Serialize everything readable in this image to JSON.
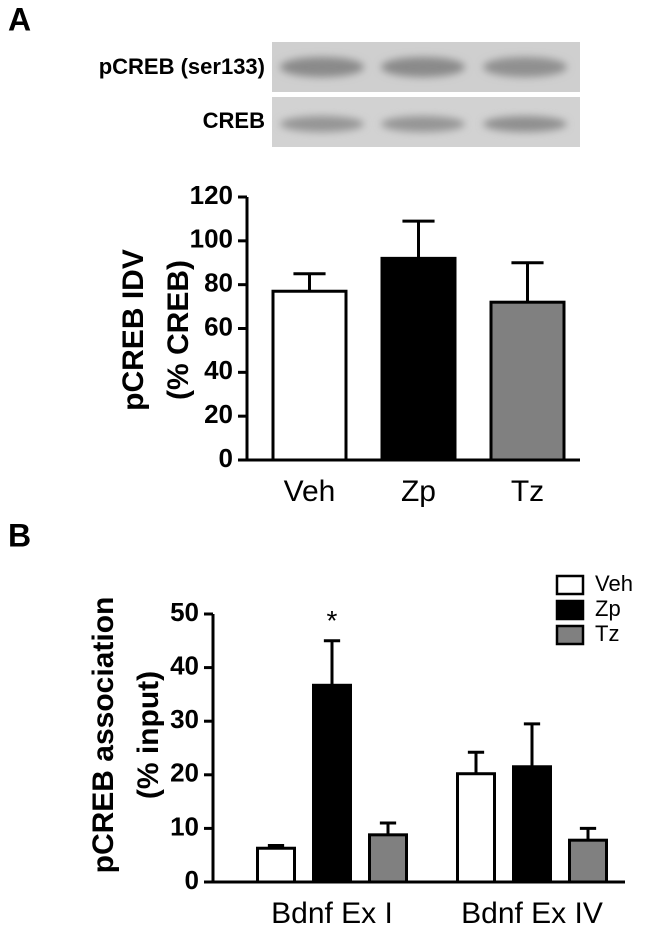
{
  "panels": [
    "A",
    "B"
  ],
  "blot_labels": [
    "pCREB (ser133)",
    "CREB"
  ],
  "chart_data": [
    {
      "type": "bar",
      "ylabel": [
        "pCREB IDV",
        "(% CREB)"
      ],
      "categories": [
        "Veh",
        "Zp",
        "Tz"
      ],
      "values": [
        77,
        92,
        72
      ],
      "errors": [
        8,
        17,
        18
      ],
      "colors": [
        "#ffffff",
        "#000000",
        "#808080"
      ],
      "ylim": [
        0,
        120
      ],
      "yticks": [
        0,
        20,
        40,
        60,
        80,
        100,
        120
      ]
    },
    {
      "type": "grouped-bar",
      "ylabel": [
        "pCREB association",
        "(% input)"
      ],
      "categories": [
        "Bdnf Ex I",
        "Bdnf Ex IV"
      ],
      "series": [
        {
          "name": "Veh",
          "color": "#ffffff",
          "values": [
            6.3,
            20.2
          ],
          "errors": [
            0.5,
            4
          ]
        },
        {
          "name": "Zp",
          "color": "#000000",
          "values": [
            36.7,
            21.5
          ],
          "errors": [
            8.3,
            8
          ]
        },
        {
          "name": "Tz",
          "color": "#808080",
          "values": [
            8.8,
            7.8
          ],
          "errors": [
            2.2,
            2.2
          ]
        }
      ],
      "annotation": "*",
      "legend": "top-right",
      "ylim": [
        0,
        50
      ],
      "yticks": [
        0,
        10,
        20,
        30,
        40,
        50
      ]
    }
  ]
}
